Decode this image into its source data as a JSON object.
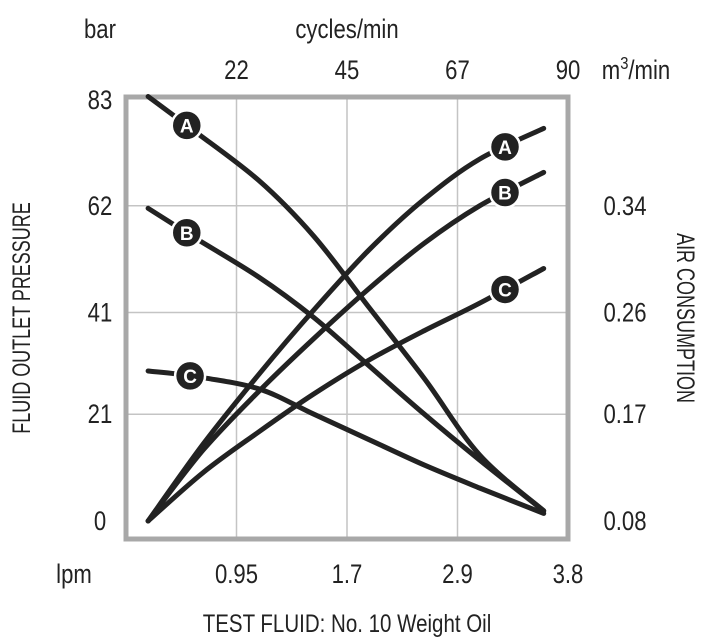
{
  "chart_data": {
    "type": "line",
    "x_bottom": {
      "unit": "lpm",
      "ticks": [
        "0.95",
        "1.7",
        "2.9",
        "3.8"
      ],
      "range_label_positions": [
        1,
        2,
        3,
        4
      ],
      "xlim": [
        0,
        4
      ]
    },
    "x_top": {
      "unit": "cycles/min",
      "ticks": [
        "22",
        "45",
        "67",
        "90"
      ]
    },
    "y_left": {
      "unit": "bar",
      "label": "FLUID OUTLET PRESSURE",
      "ticks": [
        "83",
        "62",
        "41",
        "21",
        "0"
      ],
      "ylim": [
        0,
        83
      ]
    },
    "y_right": {
      "unit_base": "m",
      "unit_sup": "3",
      "unit_tail": "/min",
      "label": "AIR CONSUMPTION",
      "ticks": [
        "0.34",
        "0.26",
        "0.17",
        "0.08"
      ]
    },
    "footer": "TEST FLUID: No. 10 Weight Oil",
    "grid": true,
    "series": [
      {
        "name": "A",
        "kind": "pressure",
        "axis": "left",
        "color": "#222222",
        "points": [
          [
            0.2,
            83.5
          ],
          [
            0.6,
            77
          ],
          [
            1.2,
            67
          ],
          [
            1.7,
            56
          ],
          [
            2.2,
            42
          ],
          [
            2.7,
            28
          ],
          [
            3.2,
            13
          ],
          [
            3.78,
            2
          ]
        ]
      },
      {
        "name": "B",
        "kind": "pressure",
        "axis": "left",
        "color": "#222222",
        "points": [
          [
            0.2,
            61.5
          ],
          [
            0.6,
            56
          ],
          [
            1.2,
            48
          ],
          [
            1.7,
            40
          ],
          [
            2.2,
            30.5
          ],
          [
            2.7,
            21
          ],
          [
            3.2,
            12
          ],
          [
            3.78,
            2
          ]
        ]
      },
      {
        "name": "C",
        "kind": "pressure",
        "axis": "left",
        "color": "#222222",
        "points": [
          [
            0.2,
            29.5
          ],
          [
            0.6,
            28.5
          ],
          [
            1.2,
            26
          ],
          [
            1.7,
            21
          ],
          [
            2.2,
            16
          ],
          [
            2.7,
            11
          ],
          [
            3.2,
            6.5
          ],
          [
            3.78,
            1.5
          ]
        ]
      },
      {
        "name": "A",
        "kind": "air",
        "axis": "right",
        "color": "#222222",
        "points": [
          [
            0.2,
            0.08
          ],
          [
            0.7,
            0.145
          ],
          [
            1.2,
            0.205
          ],
          [
            1.7,
            0.262
          ],
          [
            2.2,
            0.307
          ],
          [
            2.7,
            0.345
          ],
          [
            3.2,
            0.375
          ],
          [
            3.78,
            0.398
          ]
        ]
      },
      {
        "name": "B",
        "kind": "air",
        "axis": "right",
        "color": "#222222",
        "points": [
          [
            0.2,
            0.08
          ],
          [
            0.7,
            0.14
          ],
          [
            1.2,
            0.19
          ],
          [
            1.7,
            0.237
          ],
          [
            2.2,
            0.278
          ],
          [
            2.7,
            0.312
          ],
          [
            3.2,
            0.34
          ],
          [
            3.78,
            0.365
          ]
        ]
      },
      {
        "name": "C",
        "kind": "air",
        "axis": "right",
        "color": "#222222",
        "points": [
          [
            0.2,
            0.08
          ],
          [
            0.7,
            0.121
          ],
          [
            1.2,
            0.155
          ],
          [
            1.7,
            0.188
          ],
          [
            2.2,
            0.218
          ],
          [
            2.7,
            0.244
          ],
          [
            3.2,
            0.267
          ],
          [
            3.78,
            0.293
          ]
        ]
      }
    ],
    "labels": [
      {
        "text": "A",
        "series": 0,
        "x": 0.55
      },
      {
        "text": "B",
        "series": 1,
        "x": 0.55
      },
      {
        "text": "C",
        "series": 2,
        "x": 0.58
      },
      {
        "text": "A",
        "series": 3,
        "x": 3.43
      },
      {
        "text": "B",
        "series": 4,
        "x": 3.43
      },
      {
        "text": "C",
        "series": 5,
        "x": 3.43
      }
    ],
    "y_right_map": {
      "values": [
        0.08,
        0.17,
        0.26,
        0.34
      ],
      "to_left": [
        0,
        21,
        41,
        62
      ]
    }
  }
}
